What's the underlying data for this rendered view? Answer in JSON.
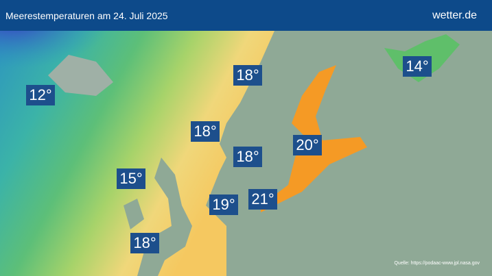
{
  "header": {
    "title": "Meerestemperaturen am 24. Juli 2025",
    "brand": "wetter.de"
  },
  "labels": [
    {
      "text": "12°"
    },
    {
      "text": "14°"
    },
    {
      "text": "18°"
    },
    {
      "text": "18°"
    },
    {
      "text": "18°"
    },
    {
      "text": "20°"
    },
    {
      "text": "15°"
    },
    {
      "text": "19°"
    },
    {
      "text": "21°"
    },
    {
      "text": "18°"
    }
  ],
  "source": "Quelle: https://podaac-www.jpl.nasa.gov"
}
